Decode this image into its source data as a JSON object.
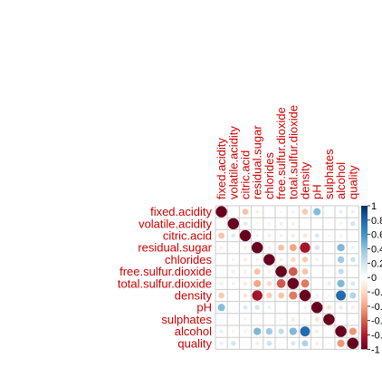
{
  "chart_data": {
    "type": "heatmap",
    "variables": [
      "fixed.acidity",
      "volatile.acidity",
      "citric.acid",
      "residual.sugar",
      "chlorides",
      "free.sulfur.dioxide",
      "total.sulfur.dioxide",
      "density",
      "pH",
      "sulphates",
      "alcohol",
      "quality"
    ],
    "matrix": [
      [
        1.0,
        -0.02,
        0.29,
        0.09,
        0.02,
        -0.05,
        0.09,
        0.27,
        -0.43,
        -0.02,
        -0.12,
        -0.11
      ],
      [
        -0.02,
        1.0,
        -0.15,
        0.06,
        0.07,
        -0.1,
        0.09,
        0.03,
        -0.03,
        -0.04,
        0.07,
        -0.19
      ],
      [
        0.29,
        -0.15,
        1.0,
        0.09,
        0.11,
        0.09,
        0.12,
        0.15,
        -0.16,
        0.06,
        -0.08,
        -0.01
      ],
      [
        0.09,
        0.06,
        0.09,
        1.0,
        0.09,
        0.3,
        0.4,
        0.84,
        -0.19,
        -0.03,
        -0.45,
        -0.1
      ],
      [
        0.02,
        0.07,
        0.11,
        0.09,
        1.0,
        0.1,
        0.2,
        0.26,
        -0.09,
        0.02,
        -0.36,
        -0.21
      ],
      [
        -0.05,
        -0.1,
        0.09,
        0.3,
        0.1,
        1.0,
        0.62,
        0.29,
        -0.01,
        0.06,
        -0.25,
        0.01
      ],
      [
        0.09,
        0.09,
        0.12,
        0.4,
        0.2,
        0.62,
        1.0,
        0.53,
        0.0,
        0.13,
        -0.45,
        -0.17
      ],
      [
        0.27,
        0.03,
        0.15,
        0.84,
        0.26,
        0.29,
        0.53,
        1.0,
        -0.09,
        0.07,
        -0.78,
        -0.31
      ],
      [
        -0.43,
        -0.03,
        -0.16,
        -0.19,
        -0.09,
        -0.01,
        0.0,
        -0.09,
        1.0,
        0.16,
        0.12,
        0.1
      ],
      [
        -0.02,
        -0.04,
        0.06,
        -0.03,
        0.02,
        0.06,
        0.13,
        0.07,
        0.16,
        1.0,
        -0.02,
        0.05
      ],
      [
        -0.12,
        0.07,
        -0.08,
        -0.45,
        -0.36,
        -0.25,
        -0.45,
        -0.78,
        0.12,
        -0.02,
        1.0,
        0.44
      ],
      [
        -0.11,
        -0.19,
        -0.01,
        -0.1,
        -0.21,
        0.01,
        -0.17,
        -0.31,
        0.1,
        0.05,
        0.44,
        1.0
      ]
    ],
    "colorbar": {
      "ticks": [
        "1",
        "0.8",
        "0.6",
        "0.4",
        "0.2",
        "0",
        "-0.2",
        "-0.4",
        "-0.6",
        "-0.8",
        "-1"
      ],
      "range": [
        -1,
        1
      ],
      "colors": [
        "#67001F",
        "#B2182B",
        "#D6604D",
        "#F4A582",
        "#FDDBC7",
        "#FFFFFF",
        "#D1E5F0",
        "#92C5DE",
        "#4393C3",
        "#2166AC",
        "#053061"
      ]
    },
    "label_color": "#cc0000",
    "grid_color": "#cccccc"
  }
}
